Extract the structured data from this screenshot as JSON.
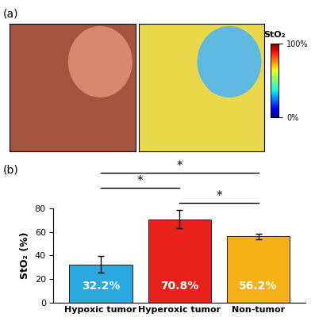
{
  "panels": [
    "(a)",
    "(b)"
  ],
  "colorbar": {
    "label": "StO₂",
    "range": [
      0,
      100
    ],
    "ticks": [
      {
        "value": 0,
        "label": "0%"
      },
      {
        "value": 100,
        "label": "100%"
      }
    ]
  },
  "chart_data": {
    "type": "bar",
    "categories": [
      "Hypoxic tumor",
      "Hyperoxic tumor",
      "Non-tumor"
    ],
    "values": [
      32.2,
      70.8,
      56.2
    ],
    "value_labels": [
      "32.2%",
      "70.8%",
      "56.2%"
    ],
    "errors": [
      7.0,
      7.5,
      2.3
    ],
    "colors": [
      "#29a9e0",
      "#e8221a",
      "#f7b118"
    ],
    "y_label": "StO₂ (%)",
    "ylim": [
      0,
      80
    ],
    "yticks": [
      0,
      20,
      40,
      60,
      80
    ],
    "data_labels": true,
    "significance": [
      {
        "pair": [
          0,
          2
        ],
        "label": "*"
      },
      {
        "pair": [
          0,
          1
        ],
        "label": "*"
      },
      {
        "pair": [
          1,
          2
        ],
        "label": "*"
      }
    ]
  }
}
